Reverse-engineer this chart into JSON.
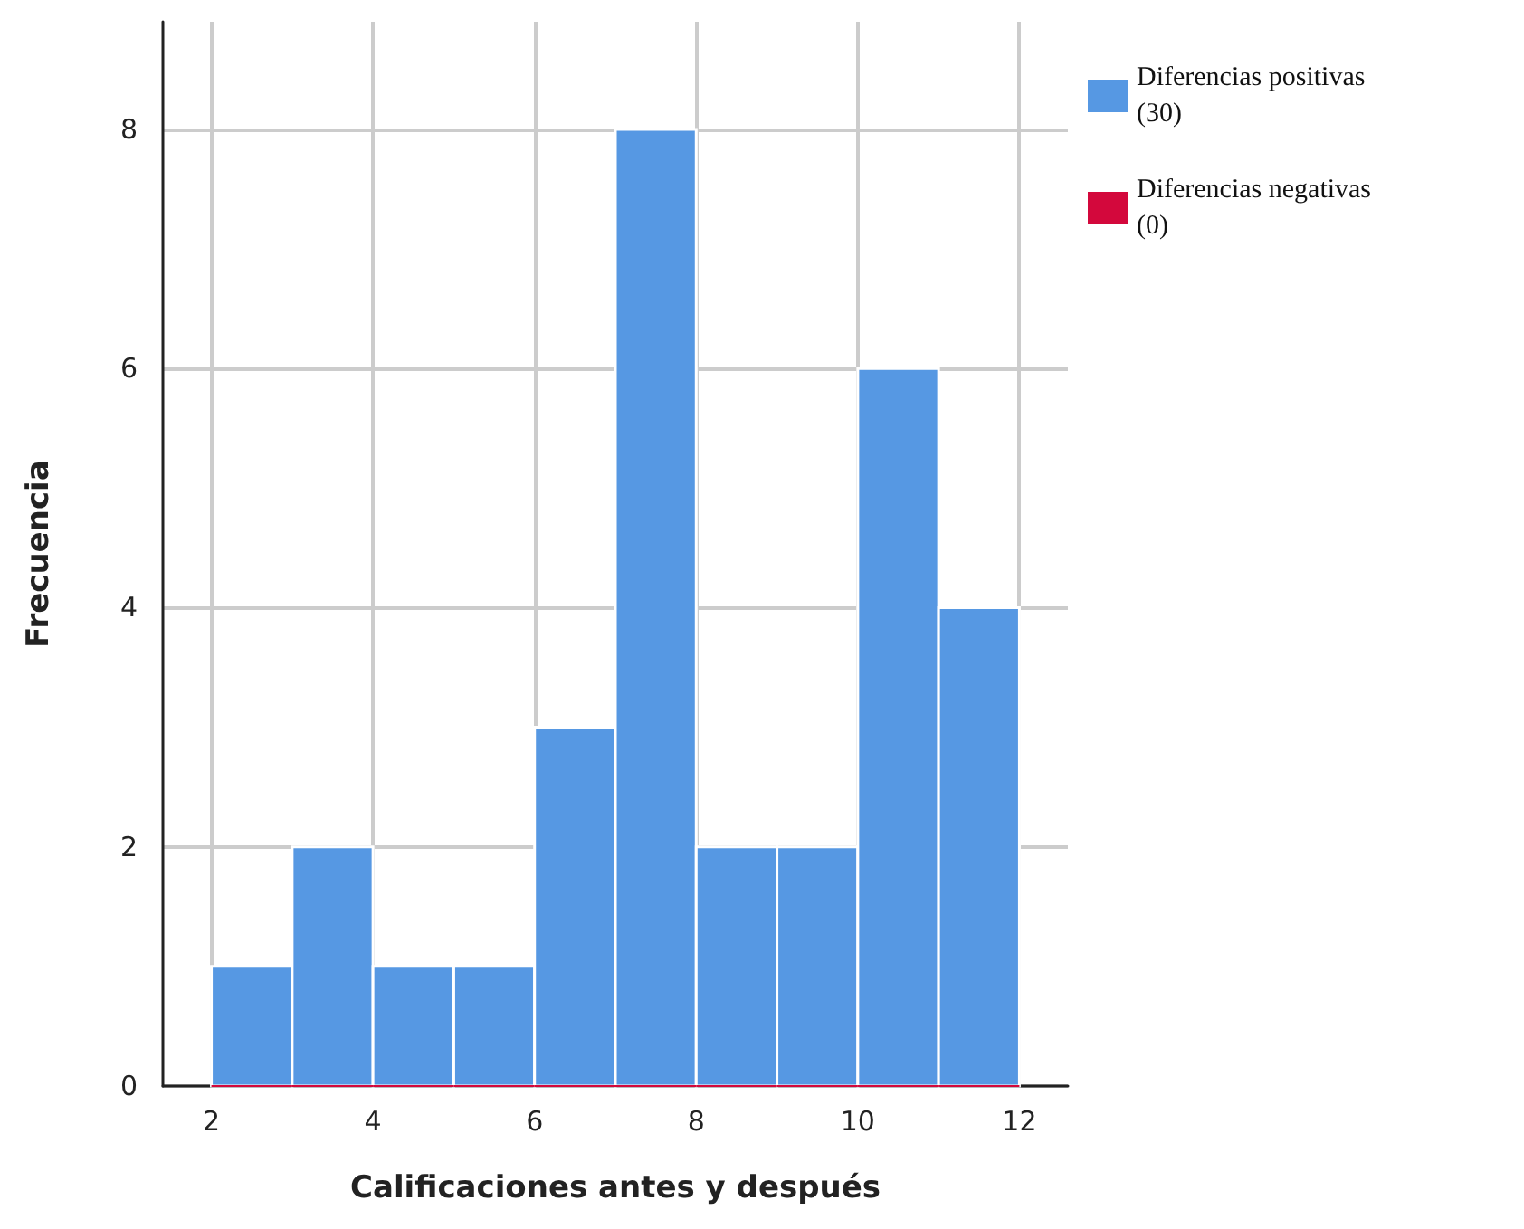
{
  "chart_data": {
    "type": "histogram",
    "xlabel": "Calificaciones antes y después",
    "ylabel": "Frecuencia",
    "bins": [
      2,
      3,
      4,
      5,
      6,
      7,
      8,
      9,
      10,
      11,
      12
    ],
    "series": [
      {
        "name": "Diferencias positivas (30)",
        "color": "#5698e3",
        "values": [
          1,
          2,
          1,
          1,
          3,
          8,
          2,
          2,
          6,
          4
        ]
      },
      {
        "name": "Diferencias negativas (0)",
        "color": "#d3083c",
        "values": [
          0,
          0,
          0,
          0,
          0,
          0,
          0,
          0,
          0,
          0
        ]
      }
    ],
    "xlim": [
      1.4,
      12.6
    ],
    "xticks": [
      2,
      4,
      6,
      8,
      10,
      12
    ],
    "ylim": [
      0,
      8.9
    ],
    "yticks": [
      0,
      2,
      4,
      6,
      8
    ],
    "grid": true,
    "legend": "top right"
  }
}
